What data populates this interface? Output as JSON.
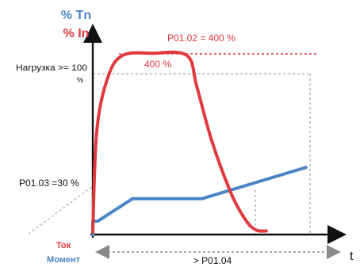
{
  "chart_data": {
    "type": "line",
    "axes": {
      "y_labels": {
        "tn": "% Tn",
        "in": "% In"
      },
      "x_label": "t",
      "legend_current": "Ток",
      "legend_torque": "Момент"
    },
    "annotations": {
      "load": "Нагрузка >= 100",
      "load_unit": "%",
      "p0103": "P01.03 =30 %",
      "p0102": "P01.02 = 400 %",
      "peak": "400 %",
      "p0104": "> P01.04"
    },
    "series": [
      {
        "name": "% In",
        "color": "#e03a3e",
        "points": [
          [
            0,
            5
          ],
          [
            0.4,
            230
          ],
          [
            1.5,
            350
          ],
          [
            3,
            400
          ],
          [
            6,
            405
          ],
          [
            9.5,
            400
          ],
          [
            10.5,
            330
          ],
          [
            12,
            210
          ],
          [
            14,
            90
          ],
          [
            15.5,
            30
          ],
          [
            16.5,
            10
          ],
          [
            17.5,
            8
          ]
        ]
      },
      {
        "name": "% Tn",
        "color": "#4a86c5",
        "points": [
          [
            0,
            0
          ],
          [
            0,
            30
          ],
          [
            0.5,
            30
          ],
          [
            4,
            80
          ],
          [
            11,
            80
          ],
          [
            21.5,
            150
          ]
        ]
      }
    ],
    "colors": {
      "axis": "#111111",
      "reference_lines": "#b4b4b4",
      "p0102_line": "#e03a3e",
      "p0104_arrow": "#8a8a8a",
      "current": "#e03a3e",
      "torque": "#4a86c5"
    }
  }
}
